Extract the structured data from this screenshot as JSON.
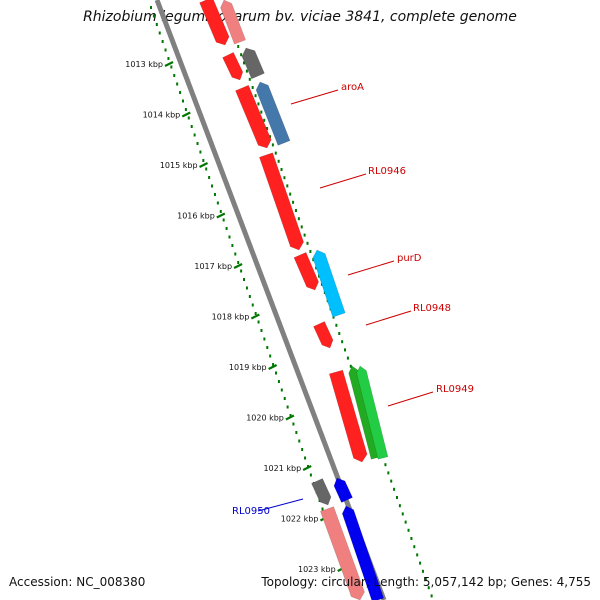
{
  "title": "Rhizobium leguminosarum bv. viciae 3841, complete genome",
  "footer": {
    "accession": "Accession: NC_008380",
    "summary": "Topology: circular; Length: 5,057,142 bp; Genes: 4,755"
  },
  "colors": {
    "background": "#ffffff",
    "backbone": "#808080",
    "ruler": "#007700",
    "label_red": "#cc0000",
    "label_blue": "#0000cc"
  },
  "ruler_ticks": [
    "1013 kbp",
    "1014 kbp",
    "1015 kbp",
    "1016 kbp",
    "1017 kbp",
    "1018 kbp",
    "1019 kbp",
    "1020 kbp",
    "1021 kbp",
    "1022 kbp",
    "1023 kbp"
  ],
  "gene_labels": [
    {
      "text": "aroA",
      "color": "#cc0000"
    },
    {
      "text": "RL0946",
      "color": "#cc0000"
    },
    {
      "text": "purD",
      "color": "#cc0000"
    },
    {
      "text": "RL0948",
      "color": "#cc0000"
    },
    {
      "text": "RL0949",
      "color": "#cc0000"
    },
    {
      "text": "RL0950",
      "color": "#0000cc"
    }
  ],
  "features": [
    {
      "color": "#ff2020",
      "strand": "minus"
    },
    {
      "color": "#f08080",
      "strand": "plus"
    },
    {
      "color": "#ff2020",
      "strand": "minus"
    },
    {
      "color": "#666666",
      "strand": "plus"
    },
    {
      "color": "#ff2020",
      "strand": "minus"
    },
    {
      "color": "#4477aa",
      "strand": "plus"
    },
    {
      "color": "#ff2020",
      "strand": "minus"
    },
    {
      "color": "#ff2020",
      "strand": "minus"
    },
    {
      "color": "#00bfff",
      "strand": "plus"
    },
    {
      "color": "#ff2020",
      "strand": "minus"
    },
    {
      "color": "#ff2020",
      "strand": "minus"
    },
    {
      "color": "#22aa22",
      "strand": "plus"
    },
    {
      "color": "#22cc44",
      "strand": "plus"
    },
    {
      "color": "#666666",
      "strand": "minus"
    },
    {
      "color": "#0000ee",
      "strand": "plus"
    },
    {
      "color": "#f08080",
      "strand": "minus"
    },
    {
      "color": "#0000ee",
      "strand": "plus"
    }
  ]
}
